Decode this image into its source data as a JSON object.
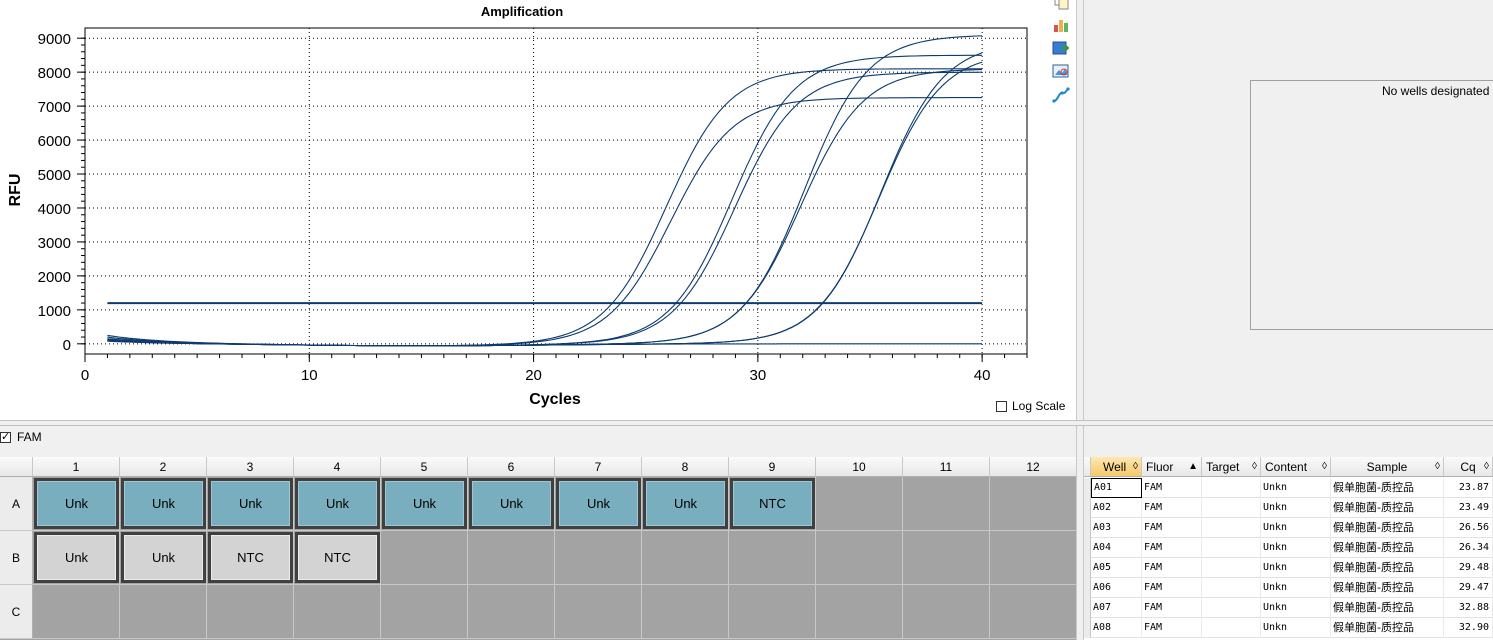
{
  "chart": {
    "title": "Amplification",
    "log_scale_label": "Log Scale",
    "log_scale_checked": false
  },
  "chart_data": {
    "type": "line",
    "title": "Amplification",
    "xlabel": "Cycles",
    "ylabel": "RFU",
    "xlim": [
      0,
      42
    ],
    "ylim": [
      -300,
      9300
    ],
    "xticks": [
      0,
      10,
      20,
      30,
      40
    ],
    "yticks": [
      0,
      1000,
      2000,
      3000,
      4000,
      5000,
      6000,
      7000,
      8000,
      9000
    ],
    "grid": true,
    "threshold": 1200,
    "series_color": "#0d3b6e",
    "series": [
      {
        "well": "A01",
        "cq": 23.87,
        "plateau": 7250,
        "slope": 0.72,
        "start": 250
      },
      {
        "well": "A02",
        "cq": 23.49,
        "plateau": 8100,
        "slope": 0.72,
        "start": 150
      },
      {
        "well": "A03",
        "cq": 26.56,
        "plateau": 8000,
        "slope": 0.72,
        "start": 100
      },
      {
        "well": "A04",
        "cq": 26.34,
        "plateau": 8500,
        "slope": 0.72,
        "start": 200
      },
      {
        "well": "A05",
        "cq": 29.48,
        "plateau": 8100,
        "slope": 0.72,
        "start": 100
      },
      {
        "well": "A06",
        "cq": 29.47,
        "plateau": 9100,
        "slope": 0.72,
        "start": 150
      },
      {
        "well": "A07",
        "cq": 32.88,
        "plateau": 8600,
        "slope": 0.72,
        "start": 100
      },
      {
        "well": "A08",
        "cq": 32.9,
        "plateau": 8900,
        "slope": 0.72,
        "start": 120
      },
      {
        "well": "A09",
        "cq": null,
        "plateau": 0,
        "slope": 0,
        "start": 80
      }
    ]
  },
  "right_panel": {
    "message": "No wells designated as"
  },
  "fluor_filter": {
    "label": "FAM",
    "checked": true
  },
  "plate": {
    "columns": [
      "1",
      "2",
      "3",
      "4",
      "5",
      "6",
      "7",
      "8",
      "9",
      "10",
      "11",
      "12"
    ],
    "rows": [
      "A",
      "B",
      "C"
    ],
    "wells": {
      "A": [
        "Unk",
        "Unk",
        "Unk",
        "Unk",
        "Unk",
        "Unk",
        "Unk",
        "Unk",
        "NTC",
        "",
        "",
        ""
      ],
      "B": [
        "Unk",
        "Unk",
        "NTC",
        "NTC",
        "",
        "",
        "",
        "",
        "",
        "",
        "",
        ""
      ],
      "C": [
        "",
        "",
        "",
        "",
        "",
        "",
        "",
        "",
        "",
        "",
        "",
        ""
      ]
    },
    "colors": {
      "unk_selected": "#79aebf",
      "unselected": "#d3d3d3",
      "empty": "#a3a3a3"
    }
  },
  "table": {
    "headers": [
      "Well",
      "Fluor",
      "Target",
      "Content",
      "Sample",
      "Cq"
    ],
    "rows": [
      [
        "A01",
        "FAM",
        "",
        "Unkn",
        "假单胞菌-质控品",
        "23.87"
      ],
      [
        "A02",
        "FAM",
        "",
        "Unkn",
        "假单胞菌-质控品",
        "23.49"
      ],
      [
        "A03",
        "FAM",
        "",
        "Unkn",
        "假单胞菌-质控品",
        "26.56"
      ],
      [
        "A04",
        "FAM",
        "",
        "Unkn",
        "假单胞菌-质控品",
        "26.34"
      ],
      [
        "A05",
        "FAM",
        "",
        "Unkn",
        "假单胞菌-质控品",
        "29.48"
      ],
      [
        "A06",
        "FAM",
        "",
        "Unkn",
        "假单胞菌-质控品",
        "29.47"
      ],
      [
        "A07",
        "FAM",
        "",
        "Unkn",
        "假单胞菌-质控品",
        "32.88"
      ],
      [
        "A08",
        "FAM",
        "",
        "Unkn",
        "假单胞菌-质控品",
        "32.90"
      ]
    ]
  }
}
